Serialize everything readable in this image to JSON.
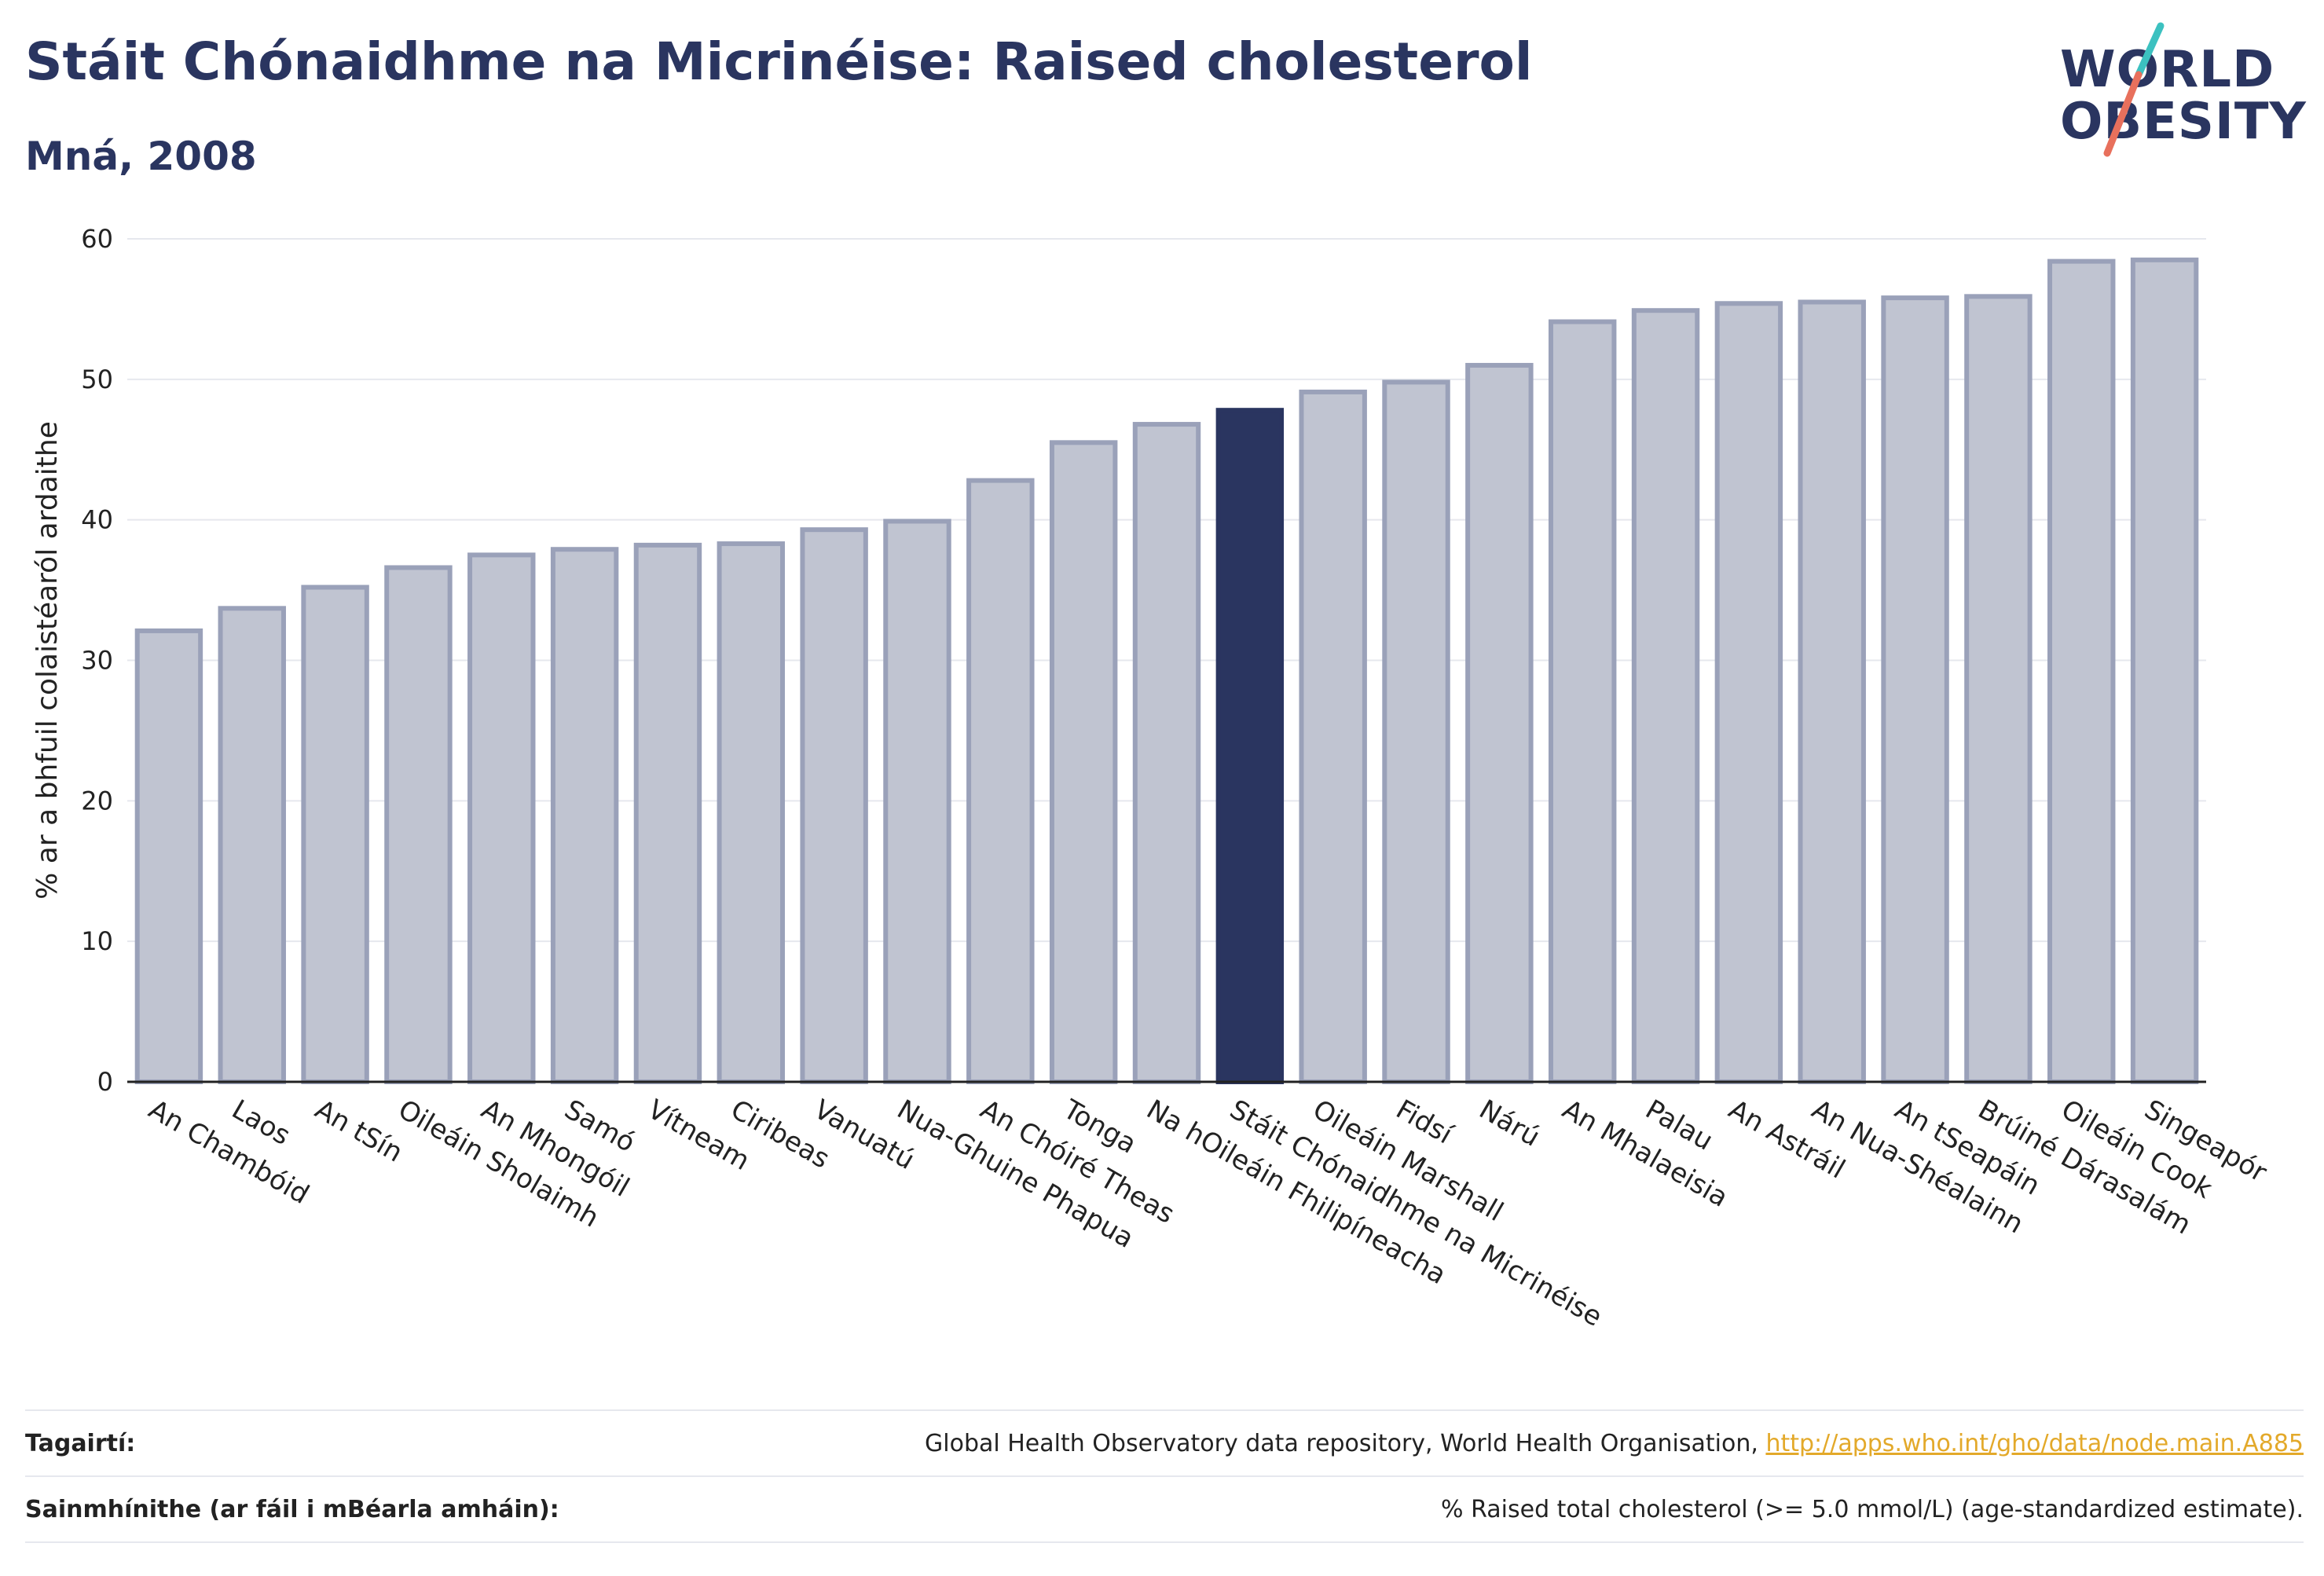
{
  "header": {
    "title": "Stáit Chónaidhme na Micrinéise: Raised cholesterol",
    "subtitle": "Mná, 2008"
  },
  "logo": {
    "line1": "WORLD",
    "line2": "OBESITY",
    "slash_colors": [
      "#3cc1c0",
      "#e8705c"
    ]
  },
  "colors": {
    "highlight": "#2a3560",
    "bar_fill": "#c0c4d1",
    "bar_stroke": "#9aa1b9",
    "grid": "#e6e8ee",
    "link": "#e3a92a"
  },
  "chart_data": {
    "type": "bar",
    "ylabel": "% ar a bhfuil colaistéaról ardaithe",
    "ylim": [
      0,
      60
    ],
    "yticks": [
      0,
      10,
      20,
      30,
      40,
      50,
      60
    ],
    "grid": true,
    "highlight": "Stáit Chónaidhme na Micrinéise",
    "categories": [
      "An Chambóid",
      "Laos",
      "An tSín",
      "Oileáin Sholaimh",
      "An Mhongóil",
      "Samó",
      "Vítneam",
      "Ciribeas",
      "Vanuatú",
      "Nua-Ghuine Phapua",
      "An Chóiré Theas",
      "Tonga",
      "Na hOileáin Fhilipíneacha",
      "Stáit Chónaidhme na Micrinéise",
      "Oileáin Marshall",
      "Fidsí",
      "Nárú",
      "An Mhalaeisia",
      "Palau",
      "An Astráil",
      "An Nua-Shéalainn",
      "An tSeapáin",
      "Brúiné Dárasalám",
      "Oileáin Cook",
      "Singeapór"
    ],
    "values": [
      32.1,
      33.7,
      35.2,
      36.6,
      37.5,
      37.9,
      38.2,
      38.3,
      39.3,
      39.9,
      42.8,
      45.5,
      46.8,
      47.8,
      49.1,
      49.8,
      51.0,
      54.1,
      54.9,
      55.4,
      55.5,
      55.8,
      55.9,
      58.4,
      58.5
    ]
  },
  "footer": {
    "references_label": "Tagairtí:",
    "references_text": "Global Health Observatory data repository, World Health Organisation, ",
    "references_link": "http://apps.who.int/gho/data/node.main.A885",
    "definitions_label": "Sainmhínithe (ar fáil i mBéarla amháin):",
    "definitions_text": "% Raised total cholesterol (>= 5.0 mmol/L) (age-standardized estimate)."
  }
}
